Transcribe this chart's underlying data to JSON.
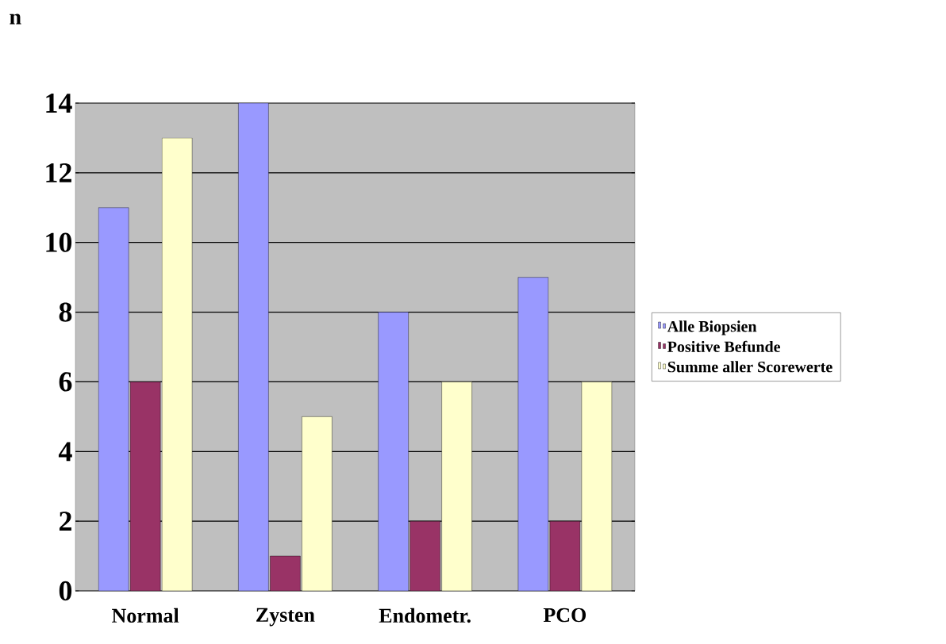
{
  "chart_data": {
    "type": "bar",
    "ylabel": "n",
    "categories": [
      "Normal",
      "Zysten",
      "Endometr.",
      "PCO"
    ],
    "series": [
      {
        "name": "Alle Biopsien",
        "color": "#9999ff",
        "values": [
          11,
          14,
          8,
          9
        ]
      },
      {
        "name": "Positive Befunde",
        "color": "#993366",
        "values": [
          6,
          1,
          2,
          2
        ]
      },
      {
        "name": "Summe aller Scorewerte",
        "color": "#ffffcc",
        "values": [
          13,
          5,
          6,
          6
        ]
      }
    ],
    "ylim": [
      0,
      14
    ],
    "yticks": [
      0,
      2,
      4,
      6,
      8,
      10,
      12,
      14
    ],
    "grid": "y",
    "legend": "right"
  }
}
